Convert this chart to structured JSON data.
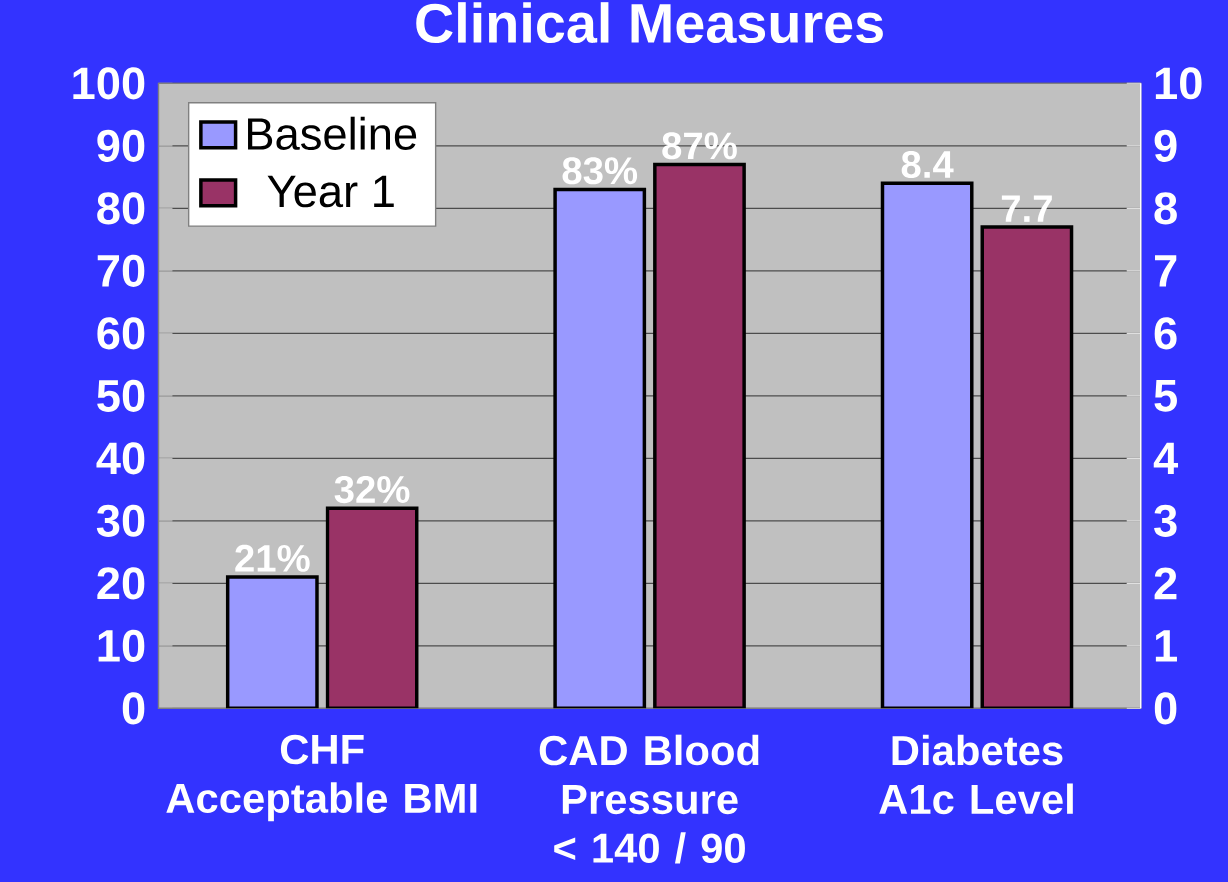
{
  "chart_data": {
    "type": "bar",
    "title": "Clinical Measures",
    "categories": [
      "CHF Acceptable BMI",
      "CAD Blood Pressure < 140 / 90",
      "Diabetes A1c Level"
    ],
    "series": [
      {
        "name": "Baseline",
        "color": "#9999ff",
        "values": [
          21,
          83,
          null
        ],
        "value_labels": [
          "21%",
          "83%",
          null
        ]
      },
      {
        "name": "Year 1",
        "color": "#993366",
        "values": [
          32,
          87,
          null
        ],
        "value_labels": [
          "32%",
          "87%",
          null
        ]
      },
      {
        "color": "#9999ff",
        "axis": "y2",
        "values": [
          null,
          null,
          8.4
        ],
        "value_labels": [
          null,
          null,
          "8.4"
        ]
      },
      {
        "color": "#993366",
        "axis": "y2",
        "values": [
          null,
          null,
          7.7
        ],
        "value_labels": [
          null,
          null,
          "7.7"
        ]
      }
    ],
    "ylim": [
      0,
      100
    ],
    "yticks": [
      0,
      10,
      20,
      30,
      40,
      50,
      60,
      70,
      80,
      90,
      100
    ],
    "y2lim": [
      0,
      10
    ],
    "y2ticks": [
      0,
      1,
      2,
      3,
      4,
      5,
      6,
      7,
      8,
      9,
      10
    ],
    "grid": "y",
    "legend": "top left"
  }
}
